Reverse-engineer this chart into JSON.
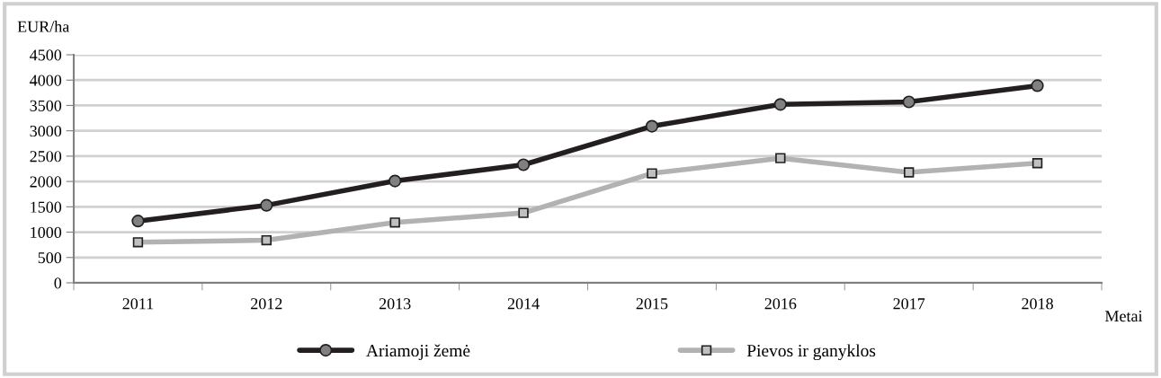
{
  "chart_data": {
    "type": "line",
    "ylabel": "EUR/ha",
    "xlabel": "Metai",
    "categories": [
      "2011",
      "2012",
      "2013",
      "2014",
      "2015",
      "2016",
      "2017",
      "2018"
    ],
    "series": [
      {
        "name": "Ariamoji žemė",
        "color": "#231f20",
        "marker": "circle",
        "values": [
          1220,
          1530,
          2010,
          2330,
          3090,
          3520,
          3570,
          3890
        ]
      },
      {
        "name": "Pievos ir ganyklos",
        "color": "#b2b2b4",
        "marker": "square",
        "values": [
          800,
          840,
          1190,
          1380,
          2160,
          2460,
          2180,
          2360
        ]
      }
    ],
    "ylim": [
      0,
      4500
    ],
    "yticks": [
      0,
      500,
      1000,
      1500,
      2000,
      2500,
      3000,
      3500,
      4000,
      4500
    ],
    "grid": "y",
    "legend": "bottom",
    "line_style": "solid"
  }
}
